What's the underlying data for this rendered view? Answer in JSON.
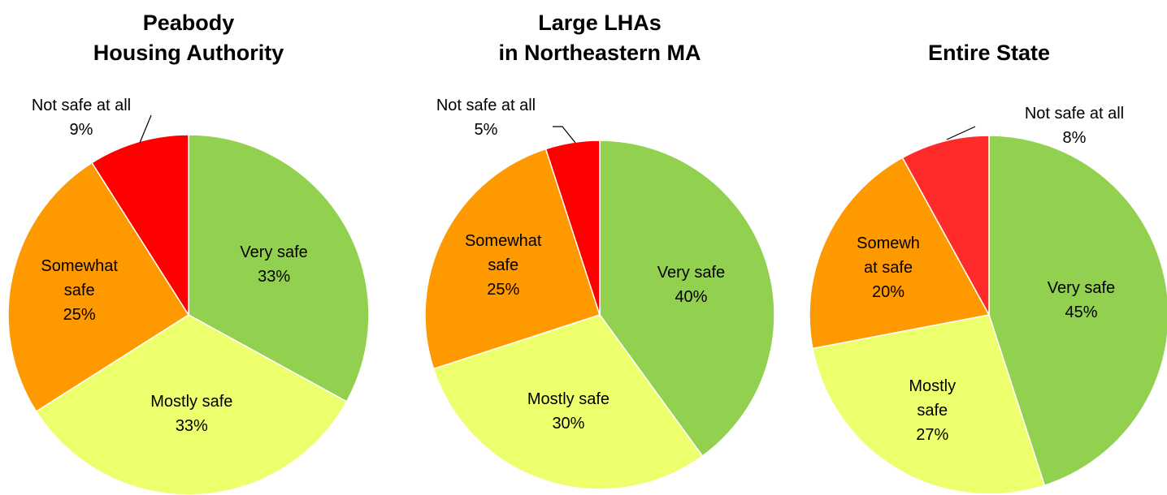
{
  "chart_data": [
    {
      "type": "pie",
      "title": [
        "Peabody",
        "Housing Authority"
      ],
      "categories": [
        "Very safe",
        "Mostly safe",
        "Somewhat safe",
        "Not safe at all"
      ],
      "values": [
        33,
        33,
        25,
        9
      ],
      "value_labels": [
        "33%",
        "33%",
        "25%",
        "9%"
      ],
      "colors": [
        "#92d050",
        "#eeff6e",
        "#ff9900",
        "#ff0000"
      ]
    },
    {
      "type": "pie",
      "title": [
        "Large LHAs",
        "in Northeastern MA"
      ],
      "categories": [
        "Very safe",
        "Mostly safe",
        "Somewhat safe",
        "Not safe at all"
      ],
      "values": [
        40,
        30,
        25,
        5
      ],
      "value_labels": [
        "40%",
        "30%",
        "25%",
        "5%"
      ],
      "colors": [
        "#92d050",
        "#eeff6e",
        "#ff9900",
        "#ff0000"
      ]
    },
    {
      "type": "pie",
      "title": [
        "Entire State"
      ],
      "categories": [
        "Very safe",
        "Mostly safe",
        "Somewhat safe",
        "Not safe at all"
      ],
      "values": [
        45,
        27,
        20,
        8
      ],
      "value_labels": [
        "45%",
        "27%",
        "20%",
        "8%"
      ],
      "colors": [
        "#92d050",
        "#eeff6e",
        "#ff9900",
        "#ff2a2a"
      ]
    }
  ]
}
